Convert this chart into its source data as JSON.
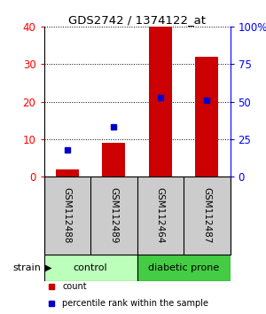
{
  "title": "GDS2742 / 1374122_at",
  "samples": [
    "GSM112488",
    "GSM112489",
    "GSM112464",
    "GSM112487"
  ],
  "counts": [
    2,
    9,
    40,
    32
  ],
  "percentiles": [
    18,
    33,
    53,
    51
  ],
  "bar_color": "#cc0000",
  "dot_color": "#0000cc",
  "ylim_left": [
    0,
    40
  ],
  "ylim_right": [
    0,
    100
  ],
  "yticks_left": [
    0,
    10,
    20,
    30,
    40
  ],
  "yticks_right": [
    0,
    25,
    50,
    75,
    100
  ],
  "ytick_labels_left": [
    "0",
    "10",
    "20",
    "30",
    "40"
  ],
  "ytick_labels_right": [
    "0",
    "25",
    "50",
    "75",
    "100%"
  ],
  "groups": [
    {
      "label": "control",
      "samples": [
        0,
        1
      ],
      "color": "#bbffbb"
    },
    {
      "label": "diabetic prone",
      "samples": [
        2,
        3
      ],
      "color": "#44cc44"
    }
  ],
  "strain_label": "strain",
  "legend": [
    {
      "label": "count",
      "color": "#cc0000"
    },
    {
      "label": "percentile rank within the sample",
      "color": "#0000cc"
    }
  ],
  "label_area_color": "#cccccc",
  "bar_width": 0.5
}
